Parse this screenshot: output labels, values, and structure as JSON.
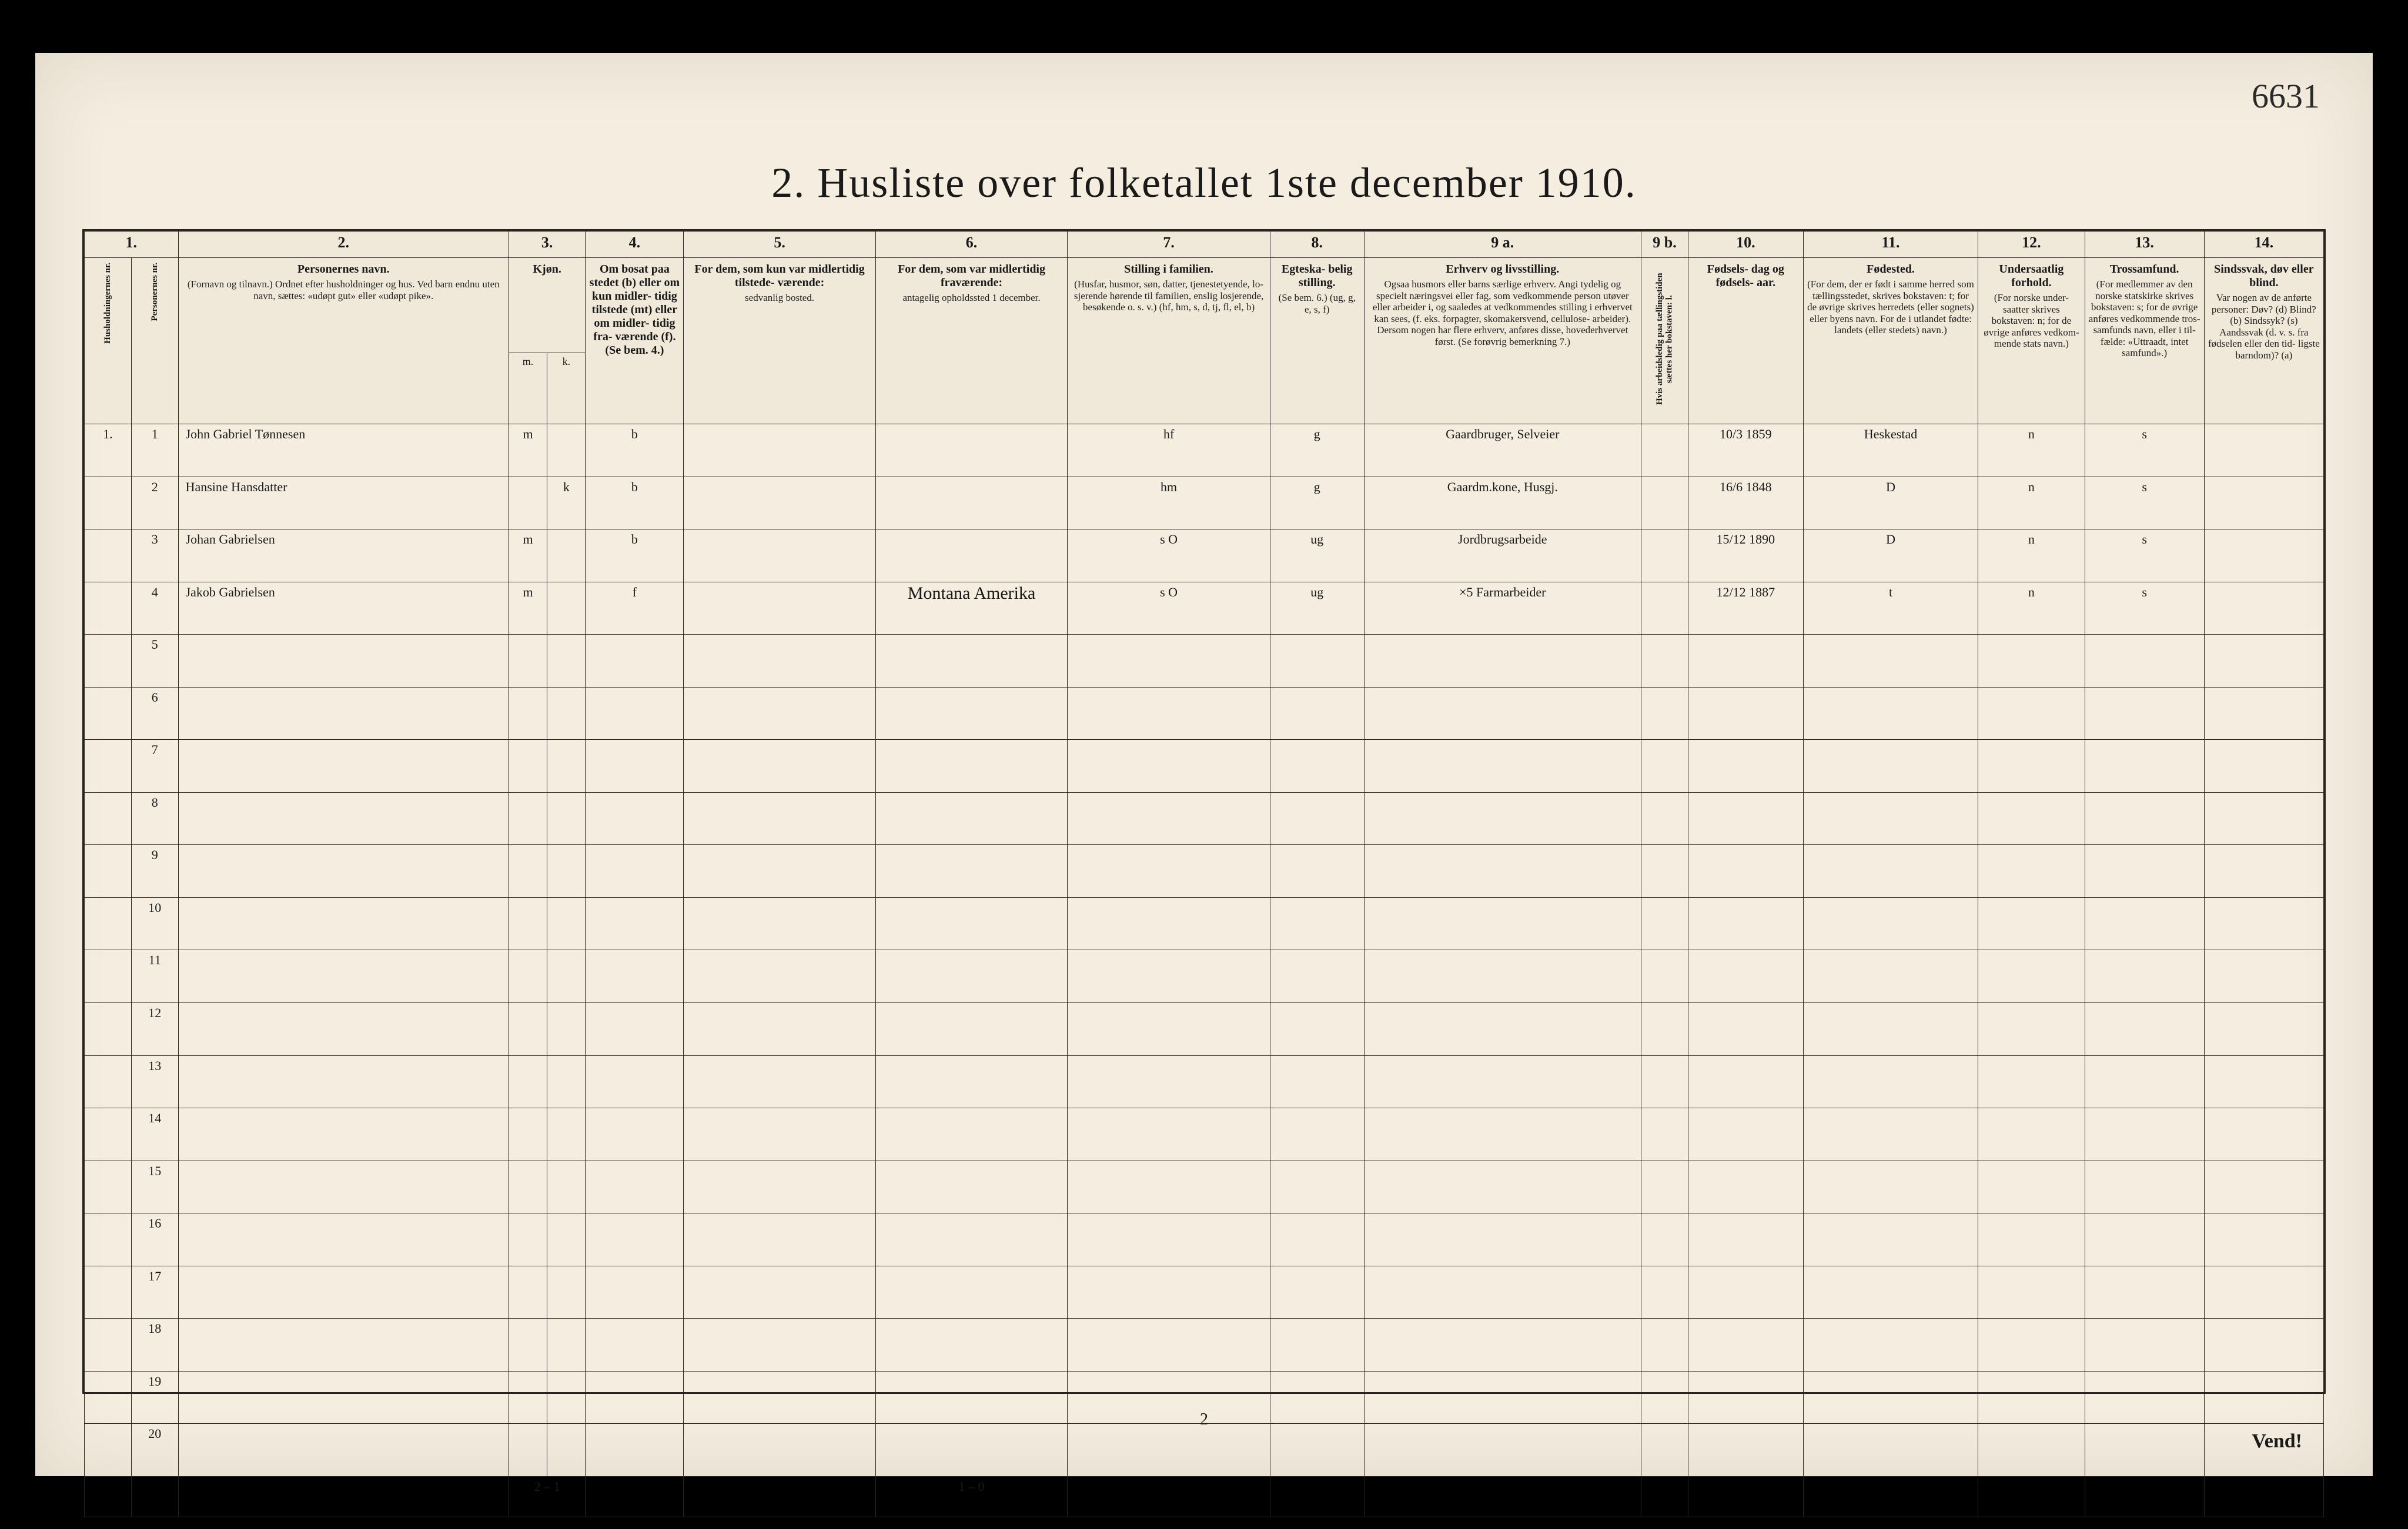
{
  "corner_note": "6631",
  "title": "2.  Husliste over folketallet 1ste december 1910.",
  "page_number": "2",
  "turn_label": "Vend!",
  "columns": {
    "nums": [
      "1.",
      "",
      "2.",
      "3.",
      "",
      "4.",
      "5.",
      "6.",
      "7.",
      "8.",
      "9 a.",
      "9 b.",
      "10.",
      "11.",
      "12.",
      "13.",
      "14."
    ],
    "heads": [
      {
        "t": "Husholdningernes nr.",
        "rot": true
      },
      {
        "t": "Personernes nr.",
        "rot": true
      },
      {
        "t": "Personernes navn.",
        "s": "(Fornavn og tilnavn.)\nOrdnet efter husholdninger og hus.\nVed barn endnu uten navn, sættes: «udøpt gut»\neller «udøpt pike»."
      },
      {
        "t": "Kjøn.",
        "s": "Mænd.",
        "rot2": true
      },
      {
        "t": "",
        "s": "Kvinder.",
        "rot2": true
      },
      {
        "t": "Om bosat\npaa stedet\n(b) eller om\nkun midler-\ntidig tilstede\n(mt) eller\nom midler-\ntidig fra-\nværende (f).\n(Se bem. 4.)"
      },
      {
        "t": "For dem, som kun var\nmidlertidig tilstede-\nværende:",
        "s": "sedvanlig bosted."
      },
      {
        "t": "For dem, som var\nmidlertidig\nfraværende:",
        "s": "antagelig opholdssted\n1 december."
      },
      {
        "t": "Stilling i familien.",
        "s": "(Husfar, husmor, søn,\ndatter, tjenestetyende, lo-\nsjerende hørende til familien,\nenslig losjerende, besøkende\no. s. v.)\n(hf, hm, s, d, tj, fl,\nel, b)"
      },
      {
        "t": "Egteska-\nbelig\nstilling.",
        "s": "(Se bem. 6.)\n(ug, g,\ne, s, f)"
      },
      {
        "t": "Erhverv og livsstilling.",
        "s": "Ogsaa husmors eller barns særlige erhverv.\nAngi tydelig og specielt næringsvei eller fag, som\nvedkommende person utøver eller arbeider i,\nog saaledes at vedkommendes stilling i erhvervet kan\nsees, (f. eks. forpagter, skomakersvend, cellulose-\narbeider). Dersom nogen har flere erhverv,\nanføres disse, hovederhvervet først.\n(Se forøvrig bemerkning 7.)"
      },
      {
        "t": "Hvis arbeidsledig\npaa tællingstiden sættes\nher bokstaven: l.",
        "rot": true
      },
      {
        "t": "Fødsels-\ndag\nog\nfødsels-\naar."
      },
      {
        "t": "Fødested.",
        "s": "(For dem, der er født\ni samme herred som\ntællingsstedet,\nskrives bokstaven: t;\nfor de øvrige skrives\nherredets (eller sognets)\neller byens navn.\nFor de i utlandet fødte:\nlandets (eller stedets)\nnavn.)"
      },
      {
        "t": "Undersaatlig\nforhold.",
        "s": "(For norske under-\nsaatter skrives\nbokstaven: n;\nfor de øvrige\nanføres vedkom-\nmende stats navn.)"
      },
      {
        "t": "Trossamfund.",
        "s": "(For medlemmer av\nden norske statskirke\nskrives bokstaven: s;\nfor de øvrige anføres\nvedkommende tros-\nsamfunds navn, eller i til-\nfælde: «Uttraadt, intet\nsamfund».)"
      },
      {
        "t": "Sindssvak, døv\neller blind.",
        "s": "Var nogen av de anførte\npersoner:\nDøv?        (d)\nBlind?      (b)\nSindssyk?   (s)\nAandssvak (d. v. s. fra\nfødselen eller den tid-\nligste barndom)?  (a)"
      }
    ],
    "sub_mk": [
      "m.",
      "k."
    ]
  },
  "colwidths_pct": [
    2.2,
    2.2,
    15.5,
    1.8,
    1.8,
    4.6,
    9.0,
    9.0,
    9.5,
    4.4,
    13.0,
    2.2,
    5.4,
    8.2,
    5.0,
    5.6,
    5.6
  ],
  "row_numbers": [
    "1",
    "2",
    "3",
    "4",
    "5",
    "6",
    "7",
    "8",
    "9",
    "10",
    "11",
    "12",
    "13",
    "14",
    "15",
    "16",
    "17",
    "18",
    "19",
    "20"
  ],
  "rows": [
    {
      "hh": "1.",
      "pn": "1",
      "name": "John Gabriel Tønnesen",
      "m": "m",
      "k": "",
      "bf": "b",
      "sedv": "",
      "opph": "",
      "fam": "hf",
      "egte": "g",
      "erhv": "Gaardbruger, Selveier",
      "al": "",
      "fod": "10/3 1859",
      "fsted": "Heskestad",
      "und": "n",
      "tro": "s",
      "sdb": ""
    },
    {
      "hh": "",
      "pn": "2",
      "name": "Hansine Hansdatter",
      "m": "",
      "k": "k",
      "bf": "b",
      "sedv": "",
      "opph": "",
      "fam": "hm",
      "egte": "g",
      "erhv": "Gaardm.kone, Husgj.",
      "al": "",
      "fod": "16/6 1848",
      "fsted": "D",
      "und": "n",
      "tro": "s",
      "sdb": ""
    },
    {
      "hh": "",
      "pn": "3",
      "name": "Johan Gabrielsen",
      "m": "m",
      "k": "",
      "bf": "b",
      "sedv": "",
      "opph": "",
      "fam": "s    O",
      "egte": "ug",
      "erhv": "Jordbrugsarbeide",
      "al": "",
      "fod": "15/12 1890",
      "fsted": "D",
      "und": "n",
      "tro": "s",
      "sdb": ""
    },
    {
      "hh": "",
      "pn": "4",
      "name": "Jakob Gabrielsen",
      "m": "m",
      "k": "",
      "bf": "f",
      "sedv": "",
      "opph": "Montana\nAmerika",
      "fam": "s    O",
      "egte": "ug",
      "erhv": "×5 Farmarbeider",
      "al": "",
      "fod": "12/12 1887",
      "fsted": "t",
      "und": "n",
      "tro": "s",
      "sdb": ""
    }
  ],
  "footer_tallies": {
    "mk": "2 – 1",
    "opph": "1 – 0"
  },
  "blank_rows": 16,
  "colors": {
    "paper": "#f4ede0",
    "ink": "#1a1a1a",
    "handwriting": "#2a2a2a",
    "pencil_blue": "#0a3a7a",
    "border": "#2a2420"
  }
}
